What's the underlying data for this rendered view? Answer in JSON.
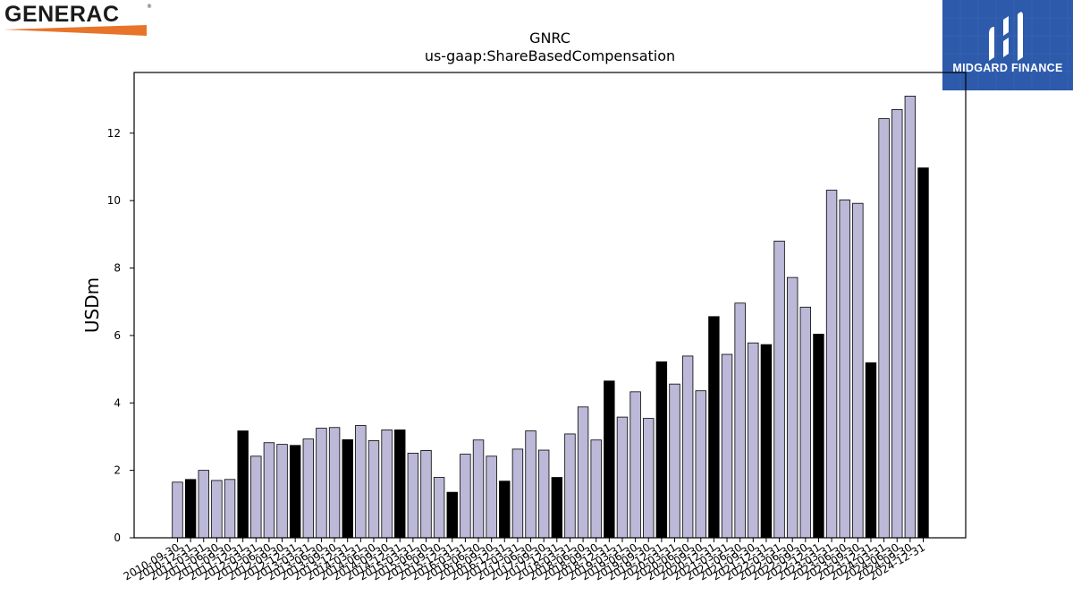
{
  "logos": {
    "left_brand": "GENERAC",
    "left_mark": "®",
    "right_brand": "MIDGARD FINANCE"
  },
  "colors": {
    "bar_light": "#bcb8d8",
    "bar_dark": "#000000",
    "logo_orange": "#e8742a",
    "logo_blue": "#2d5aaa"
  },
  "chart_data": {
    "type": "bar",
    "title": "GNRC",
    "subtitle": "us-gaap:ShareBasedCompensation",
    "xlabel": "",
    "ylabel": "USDm",
    "ylim": [
      0,
      13.8
    ],
    "yticks": [
      0,
      2,
      4,
      6,
      8,
      10,
      12
    ],
    "grid": false,
    "legend": "none",
    "categories": [
      "2010-09-30",
      "2010-12-31",
      "2011-03-31",
      "2011-06-30",
      "2011-09-30",
      "2011-12-31",
      "2012-03-31",
      "2012-06-30",
      "2012-09-30",
      "2012-12-31",
      "2013-03-31",
      "2013-06-30",
      "2013-09-30",
      "2013-12-31",
      "2014-03-31",
      "2014-06-30",
      "2014-09-30",
      "2014-12-31",
      "2015-03-31",
      "2015-06-30",
      "2015-09-30",
      "2015-12-31",
      "2016-03-31",
      "2016-06-30",
      "2016-09-30",
      "2016-12-31",
      "2017-03-31",
      "2017-06-30",
      "2017-09-30",
      "2017-12-31",
      "2018-03-31",
      "2018-06-30",
      "2018-09-30",
      "2018-12-31",
      "2019-03-31",
      "2019-06-30",
      "2019-09-30",
      "2019-12-31",
      "2020-03-31",
      "2020-06-30",
      "2020-09-30",
      "2020-12-31",
      "2021-03-31",
      "2021-06-30",
      "2021-09-30",
      "2021-12-31",
      "2022-03-31",
      "2022-06-30",
      "2022-09-30",
      "2022-12-31",
      "2023-03-31",
      "2023-06-30",
      "2023-09-30",
      "2023-12-31",
      "2024-03-31",
      "2024-06-30",
      "2024-09-30",
      "2024-12-31"
    ],
    "values": [
      1.65,
      1.73,
      2.0,
      1.7,
      1.73,
      3.17,
      2.42,
      2.82,
      2.77,
      2.74,
      2.93,
      3.25,
      3.27,
      2.91,
      3.33,
      2.88,
      3.2,
      3.2,
      2.51,
      2.59,
      1.79,
      1.35,
      2.48,
      2.9,
      2.42,
      1.68,
      2.63,
      3.17,
      2.6,
      1.79,
      3.08,
      3.88,
      2.9,
      4.65,
      3.58,
      4.33,
      3.54,
      5.22,
      4.56,
      5.39,
      4.36,
      6.56,
      5.44,
      6.96,
      5.78,
      5.73,
      8.8,
      7.72,
      6.84,
      6.04,
      10.31,
      10.02,
      9.92,
      5.19,
      12.43,
      12.7,
      13.1,
      10.97
    ],
    "highlight": [
      false,
      true,
      false,
      false,
      false,
      true,
      false,
      false,
      false,
      true,
      false,
      false,
      false,
      true,
      false,
      false,
      false,
      true,
      false,
      false,
      false,
      true,
      false,
      false,
      false,
      true,
      false,
      false,
      false,
      true,
      false,
      false,
      false,
      true,
      false,
      false,
      false,
      true,
      false,
      false,
      false,
      true,
      false,
      false,
      false,
      true,
      false,
      false,
      false,
      true,
      false,
      false,
      false,
      true,
      false,
      false,
      false,
      true
    ]
  }
}
